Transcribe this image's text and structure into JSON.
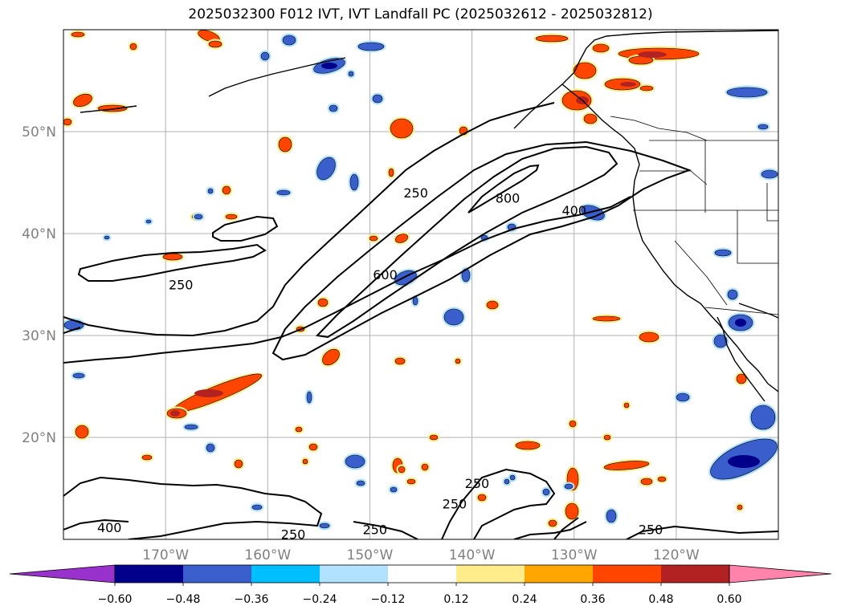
{
  "title": "2025032300 F012 IVT, IVT Landfall PC (2025032612 - 2025032812)",
  "map": {
    "lat_labels": [
      "50°N",
      "40°N",
      "30°N",
      "20°N"
    ],
    "lon_labels": [
      "170°W",
      "160°W",
      "150°W",
      "140°W",
      "130°W",
      "120°W"
    ],
    "grid": true,
    "label_color": "#808080"
  },
  "contours": {
    "levels": [
      "250",
      "400",
      "600",
      "800"
    ],
    "labels": [
      {
        "text": "250",
        "lat": 35.0,
        "lon": -168.5
      },
      {
        "text": "250",
        "lat": 44.0,
        "lon": -145.5
      },
      {
        "text": "600",
        "lat": 36.0,
        "lon": -148.5
      },
      {
        "text": "800",
        "lat": 43.5,
        "lon": -136.5
      },
      {
        "text": "400",
        "lat": 42.3,
        "lon": -130.0
      },
      {
        "text": "250",
        "lat": 15.5,
        "lon": -139.5
      },
      {
        "text": "250",
        "lat": 13.5,
        "lon": -141.7
      },
      {
        "text": "250",
        "lat": 11.0,
        "lon": -149.5
      },
      {
        "text": "250",
        "lat": 10.5,
        "lon": -157.5
      },
      {
        "text": "400",
        "lat": 11.2,
        "lon": -175.5
      },
      {
        "text": "250",
        "lat": 11.0,
        "lon": -122.5
      }
    ]
  },
  "colorbar": {
    "ticks": [
      "−0.60",
      "−0.48",
      "−0.36",
      "−0.24",
      "−0.12",
      "0.12",
      "0.24",
      "0.36",
      "0.48",
      "0.60"
    ],
    "colors": [
      "#9932CC",
      "#00008B",
      "#3A5FCD",
      "#00BFFF",
      "#B0E2FF",
      "#FFFFFF",
      "#FFEC8B",
      "#FFA500",
      "#FF4500",
      "#B22222",
      "#FF83AA"
    ]
  },
  "colors": {
    "orange": "#FF4500",
    "yellow": "#FFEC8B",
    "amber": "#FFA500",
    "blue": "#3A5FCD",
    "lightblue": "#B0E2FF",
    "cyan": "#00BFFF",
    "darkred": "#B22222"
  }
}
